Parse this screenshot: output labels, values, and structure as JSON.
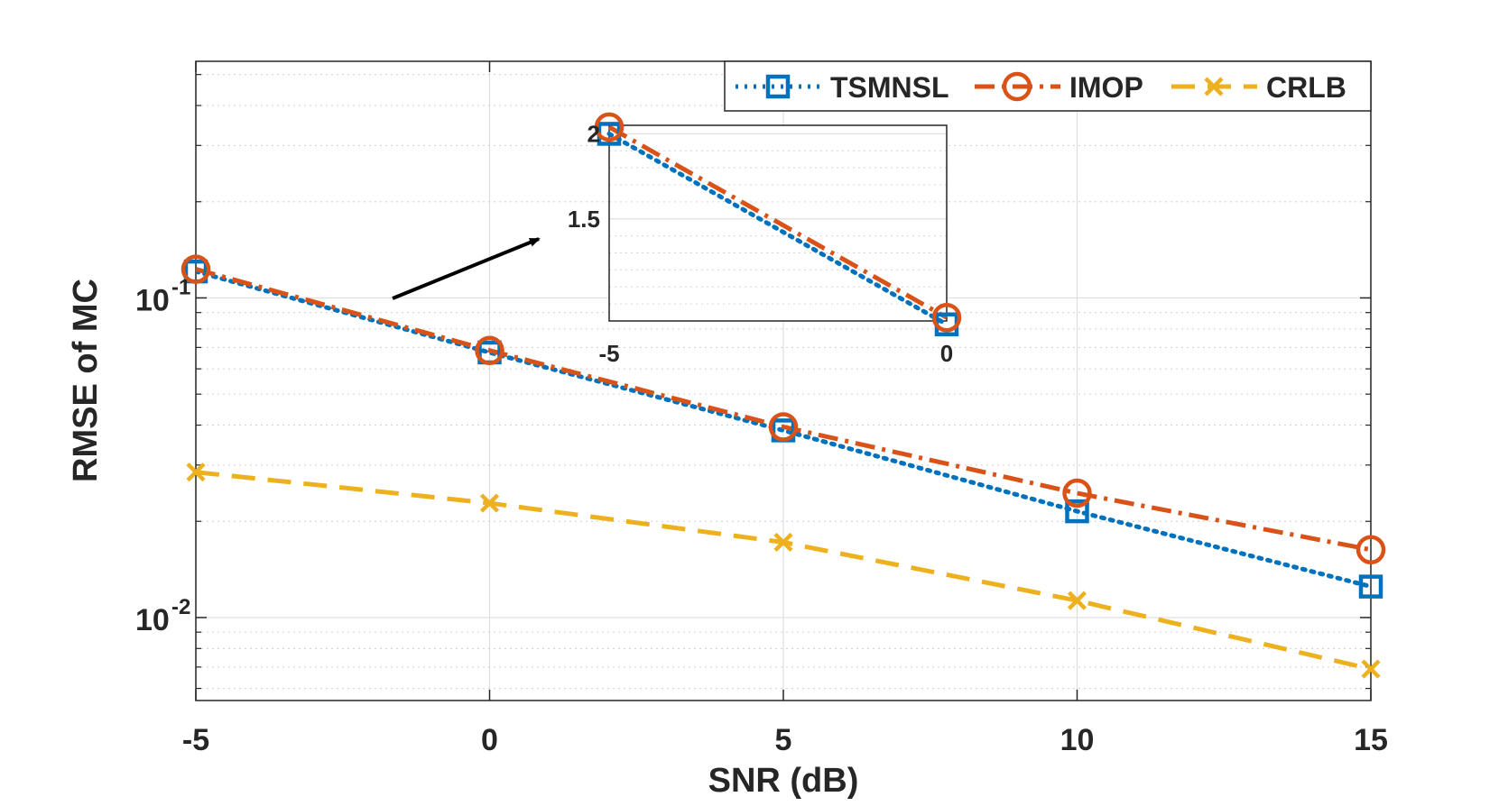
{
  "chart_data": {
    "type": "line",
    "title": "",
    "xlabel": "SNR (dB)",
    "ylabel": "RMSE of MC",
    "x": [
      -5,
      0,
      5,
      10,
      15
    ],
    "xlim": [
      -5,
      15
    ],
    "ylim": [
      0.0055,
      0.55
    ],
    "yscale": "log",
    "grid": true,
    "x_tick_labels": [
      "-5",
      "0",
      "5",
      "10",
      "15"
    ],
    "y_ticks": [
      {
        "base": "10",
        "exp": "-1"
      },
      {
        "base": "10",
        "exp": "-2"
      }
    ],
    "legend_position": "top-right",
    "series": [
      {
        "name": "TSMNSL",
        "color": "#0072BD",
        "style": "dotted",
        "marker": "square",
        "values": [
          0.121,
          0.0675,
          0.0385,
          0.0215,
          0.0125
        ]
      },
      {
        "name": "IMOP",
        "color": "#D95319",
        "style": "dashdot",
        "marker": "circle",
        "values": [
          0.123,
          0.0685,
          0.0395,
          0.0245,
          0.0163
        ]
      },
      {
        "name": "CRLB",
        "color": "#EDB120",
        "style": "dashed",
        "marker": "x",
        "values": [
          0.0285,
          0.0228,
          0.0172,
          0.0113,
          0.0069
        ]
      }
    ],
    "inset": {
      "x": [
        -5,
        0
      ],
      "xlim": [
        -5,
        0
      ],
      "ylim": [
        0.9,
        2.05
      ],
      "x_tick_labels": [
        "-5",
        "0"
      ],
      "y_tick_labels": [
        "1.5",
        "2"
      ],
      "y_ticks": [
        1.5,
        2
      ],
      "annotation": "arrow pointing to zoomed region",
      "series": [
        {
          "name": "TSMNSL",
          "values": [
            2.0,
            0.88
          ]
        },
        {
          "name": "IMOP",
          "values": [
            2.04,
            0.92
          ]
        }
      ]
    }
  }
}
